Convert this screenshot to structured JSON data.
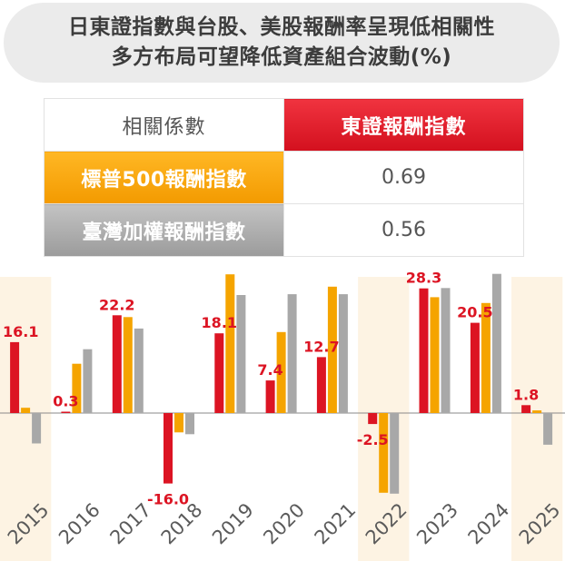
{
  "title": {
    "line1": "日東證指數與台股、美股報酬率呈現低相關性",
    "line2": "多方布局可望降低資產組合波動(%)"
  },
  "correlation_table": {
    "header_label": "相關係數",
    "header_main": "東證報酬指數",
    "rows": [
      {
        "label": "標普500報酬指數",
        "value": "0.69"
      },
      {
        "label": "臺灣加權報酬指數",
        "value": "0.56"
      }
    ]
  },
  "colors": {
    "topix": "#dc1423",
    "sp500": "#f5a400",
    "taiex": "#a8a8a8",
    "highlight": "#fdf3e3",
    "label_red": "#dc1423",
    "year_label": "#5a5a5a"
  },
  "chart_data": {
    "type": "bar",
    "categories": [
      "2015",
      "2016",
      "2017",
      "2018",
      "2019",
      "2020",
      "2021",
      "2022",
      "2023",
      "2024",
      "2025"
    ],
    "highlighted_categories": [
      "2015",
      "2022",
      "2025"
    ],
    "series": [
      {
        "values": [
          16.1,
          0.3,
          22.2,
          -16.0,
          18.1,
          7.4,
          12.7,
          -2.5,
          28.3,
          20.5,
          1.8
        ]
      },
      {
        "values": [
          1.2,
          11.2,
          21.8,
          -4.4,
          31.5,
          18.4,
          28.7,
          -18.1,
          26.3,
          25.0,
          0.6
        ]
      },
      {
        "values": [
          -6.9,
          14.5,
          19.2,
          -4.8,
          26.8,
          27.0,
          27.0,
          -18.3,
          28.4,
          31.6,
          -7.2
        ]
      }
    ],
    "data_labels": [
      "16.1",
      "0.3",
      "22.2",
      "-16.0",
      "18.1",
      "7.4",
      "12.7",
      "-2.5",
      "28.3",
      "20.5",
      "1.8"
    ],
    "ylim": [
      -20,
      32
    ],
    "grid": false,
    "legend": "none"
  }
}
